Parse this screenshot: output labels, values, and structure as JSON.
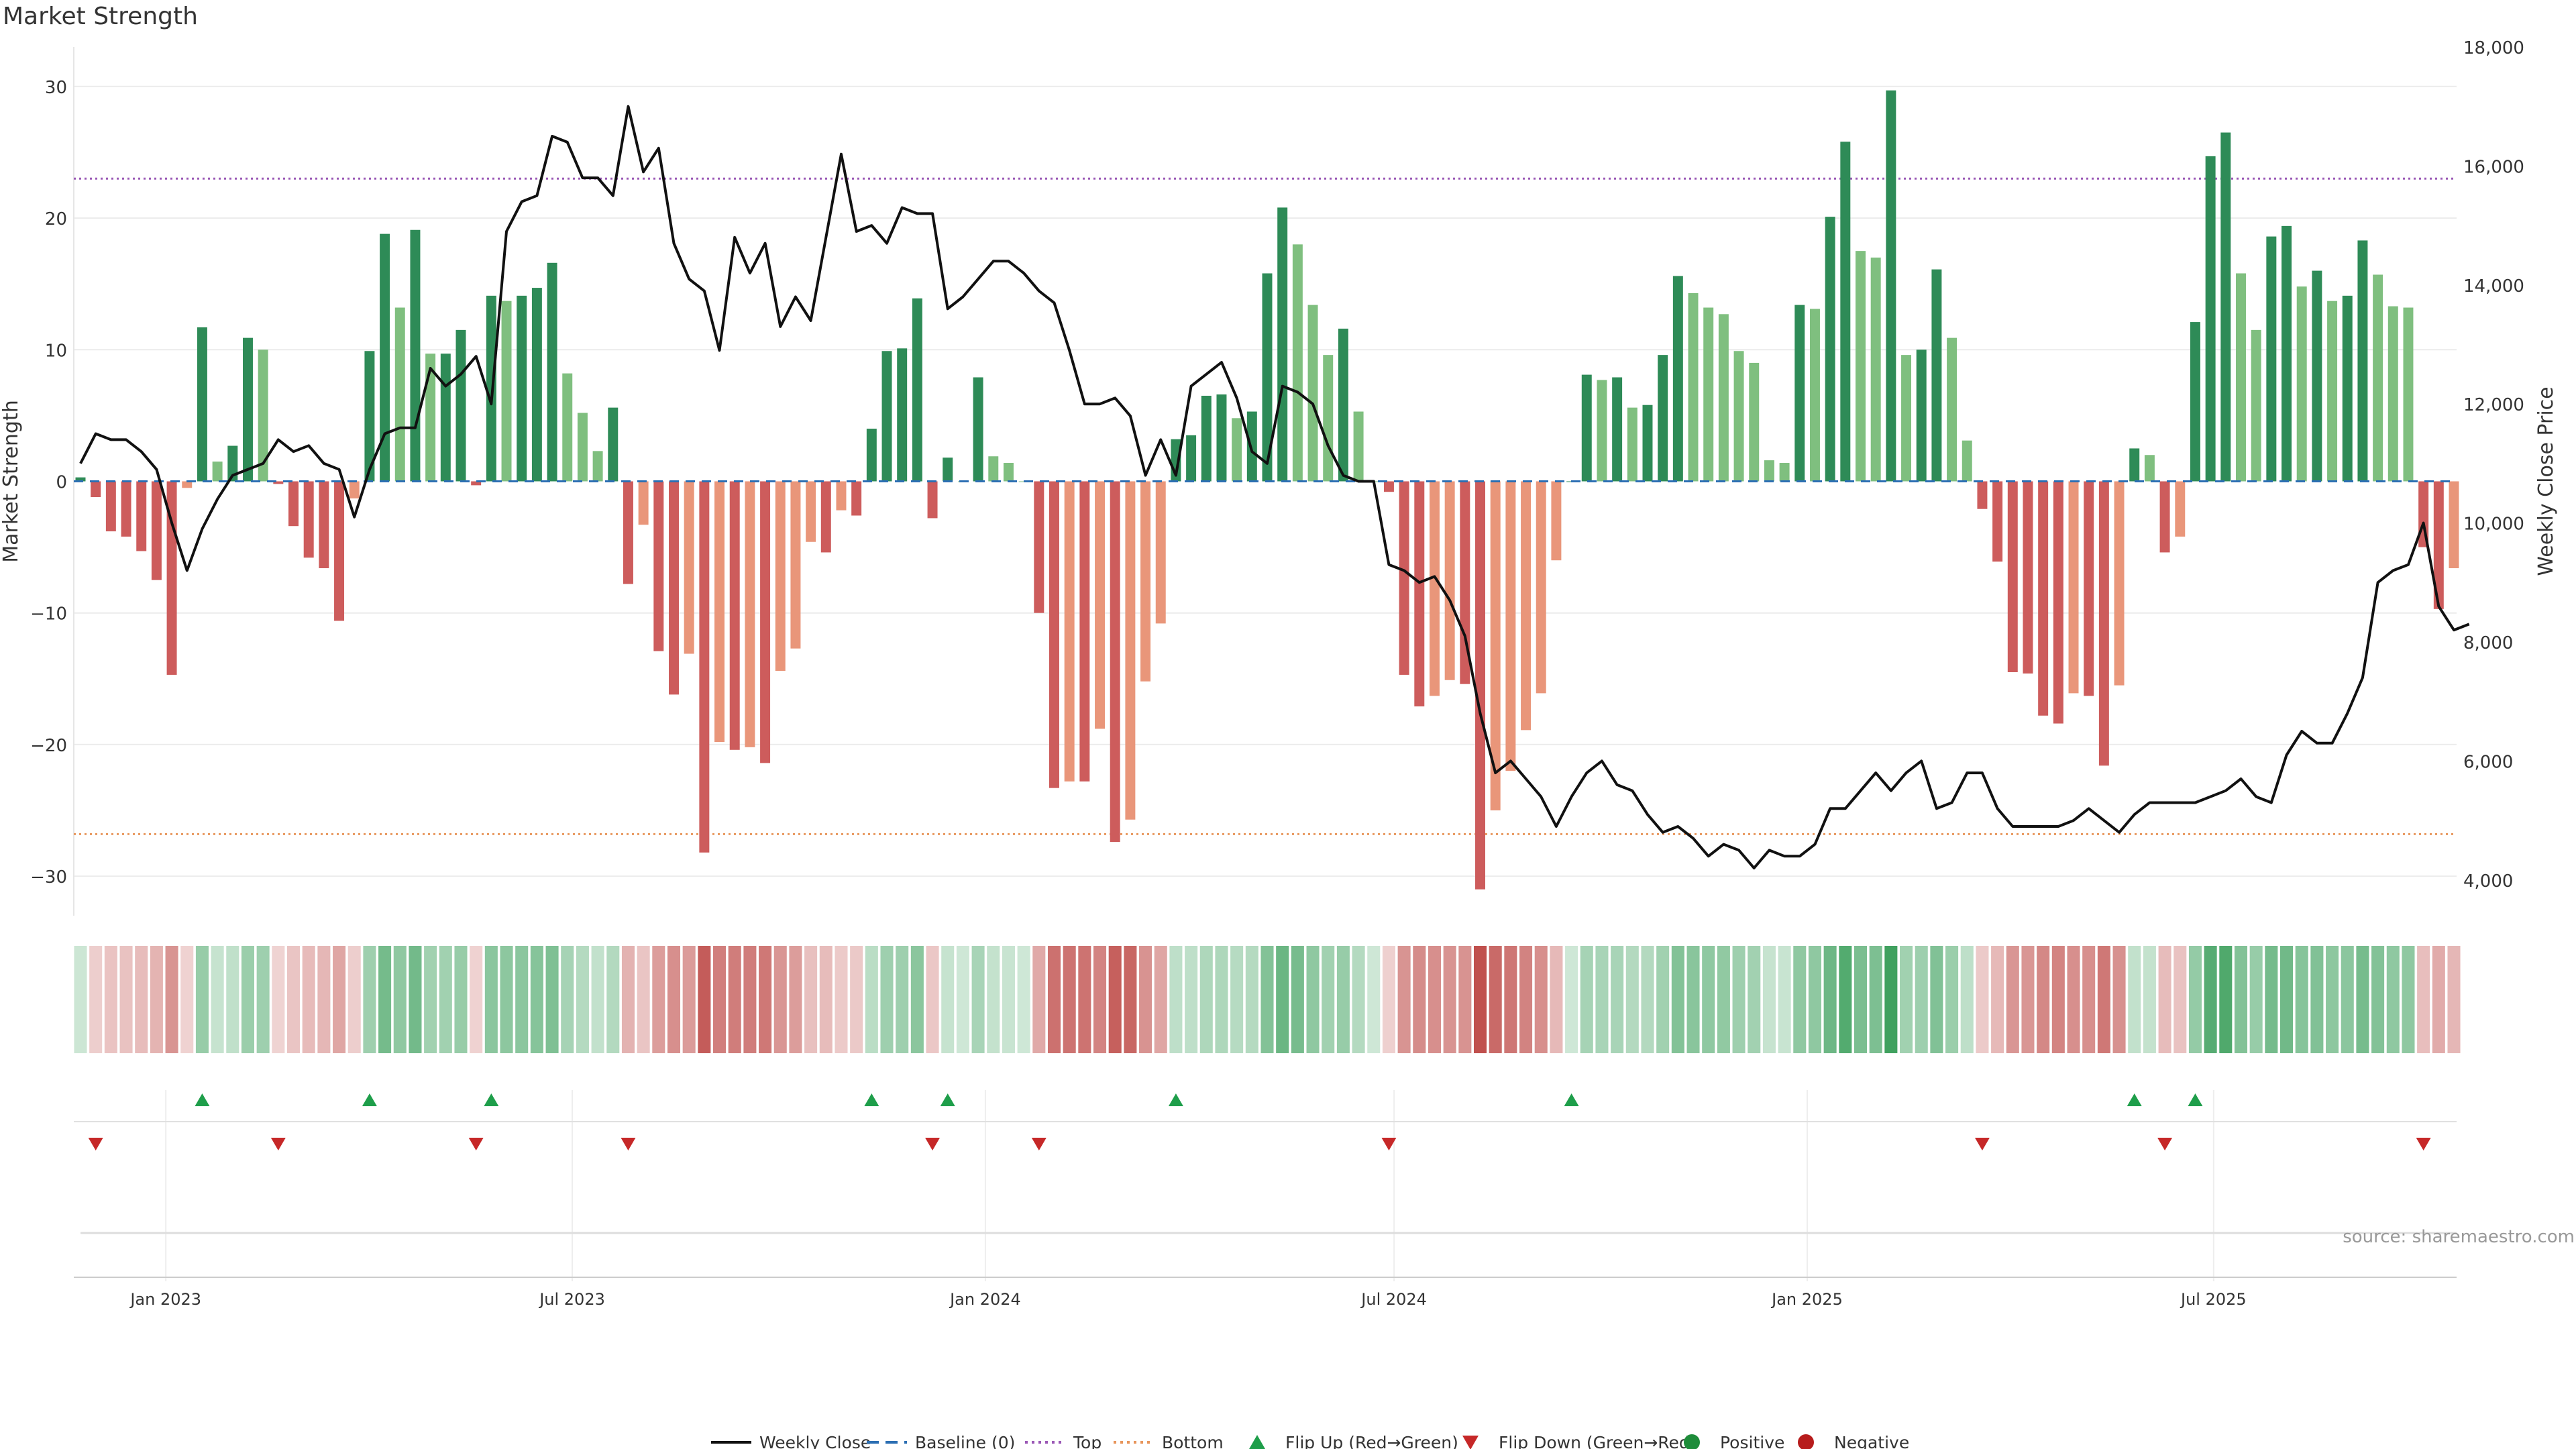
{
  "chart_data": {
    "type": "bar",
    "title": "Market Strength",
    "ylabel_left": "Market Strength",
    "ylabel_right": "Weekly Close Price",
    "ylim_left": [
      -33,
      33
    ],
    "ylim_right": [
      3400,
      18000
    ],
    "yticks_left": [
      30,
      20,
      10,
      0,
      -10,
      -20,
      -30
    ],
    "yticks_left_labels": [
      "30",
      "20",
      "10",
      "0",
      "−10",
      "−20",
      "−30"
    ],
    "yticks_right": [
      18000,
      16000,
      14000,
      12000,
      10000,
      8000,
      6000,
      4000
    ],
    "yticks_right_labels": [
      "18,000",
      "16,000",
      "14,000",
      "12,000",
      "10,000",
      "8,000",
      "6,000",
      "4,000"
    ],
    "top_line": 23,
    "bottom_line": -26.8,
    "x_start": "2022-11-24",
    "x_end": "2025-10-16",
    "x_ticks": [
      {
        "label": "Jan 2023",
        "date": "2023-01-01"
      },
      {
        "label": "Jul 2023",
        "date": "2023-07-01"
      },
      {
        "label": "Jan 2024",
        "date": "2024-01-01"
      },
      {
        "label": "Jul 2024",
        "date": "2024-07-01"
      },
      {
        "label": "Jan 2025",
        "date": "2025-01-01"
      },
      {
        "label": "Jul 2025",
        "date": "2025-07-01"
      }
    ],
    "strength": [
      0.3,
      -1.2,
      -3.8,
      -4.2,
      -5.3,
      -7.5,
      -14.7,
      -0.5,
      11.7,
      1.5,
      2.7,
      10.9,
      10,
      -0.2,
      -3.4,
      -5.8,
      -6.6,
      -10.6,
      -1.3,
      9.9,
      18.8,
      13.2,
      19.1,
      9.7,
      9.7,
      11.5,
      -0.3,
      14.1,
      13.7,
      14.1,
      14.7,
      16.6,
      8.2,
      5.2,
      2.3,
      5.6,
      -7.8,
      -3.3,
      -12.9,
      -16.2,
      -13.1,
      -28.2,
      -19.8,
      -20.4,
      -20.2,
      -21.4,
      -14.4,
      -12.7,
      -4.6,
      -5.4,
      -2.2,
      -2.6,
      4,
      9.9,
      10.1,
      13.9,
      -2.8,
      1.8,
      0,
      7.9,
      1.9,
      1.4,
      0,
      -10,
      -23.3,
      -22.8,
      -22.8,
      -18.8,
      -27.4,
      -25.7,
      -15.2,
      -10.8,
      3.2,
      3.5,
      6.5,
      6.6,
      4.8,
      5.3,
      15.8,
      20.8,
      18,
      13.4,
      9.6,
      11.6,
      5.3,
      0,
      -0.8,
      -14.7,
      -17.1,
      -16.3,
      -15.1,
      -15.4,
      -31,
      -25,
      -22,
      -18.9,
      -16.1,
      -6,
      0,
      8.1,
      7.7,
      7.9,
      5.6,
      5.8,
      9.6,
      15.6,
      14.3,
      13.2,
      12.7,
      9.9,
      9,
      1.6,
      1.4,
      13.4,
      13.1,
      20.1,
      25.8,
      17.5,
      17,
      29.7,
      9.6,
      10,
      16.1,
      10.9,
      3.1,
      -2.1,
      -6.1,
      -14.5,
      -14.6,
      -17.8,
      -18.4,
      -16.1,
      -16.3,
      -21.6,
      -15.5,
      2.5,
      2,
      -5.4,
      -4.2,
      12.1,
      24.7,
      26.5,
      15.8,
      11.5,
      18.6,
      19.4,
      14.8,
      16,
      13.7,
      14.1,
      18.3,
      15.7,
      13.3,
      13.2,
      -5,
      -9.7,
      -6.6
    ],
    "weekly_close": [
      11000,
      11500,
      11400,
      11400,
      11200,
      10900,
      10000,
      9200,
      9900,
      10400,
      10800,
      10900,
      11000,
      11400,
      11200,
      11300,
      11000,
      10900,
      10100,
      10900,
      11500,
      11600,
      11600,
      12600,
      12300,
      12500,
      12800,
      12000,
      14900,
      15400,
      15500,
      16500,
      16400,
      15800,
      15800,
      15500,
      17000,
      15900,
      16300,
      14700,
      14100,
      13900,
      12900,
      14800,
      14200,
      14700,
      13300,
      13800,
      13400,
      14800,
      16200,
      14900,
      15000,
      14700,
      15300,
      15200,
      15200,
      13600,
      13800,
      14100,
      14400,
      14400,
      14200,
      13900,
      13700,
      12900,
      12000,
      12000,
      12100,
      11800,
      10800,
      11400,
      10800,
      12300,
      12500,
      12700,
      12100,
      11200,
      11000,
      12300,
      12200,
      12000,
      11300,
      10800,
      10700,
      10700,
      9300,
      9200,
      9000,
      9100,
      8700,
      8100,
      6800,
      5800,
      6000,
      5700,
      5400,
      4900,
      5400,
      5800,
      6000,
      5600,
      5500,
      5100,
      4800,
      4900,
      4700,
      4400,
      4600,
      4500,
      4200,
      4500,
      4400,
      4400,
      4600,
      5200,
      5200,
      5500,
      5800,
      5500,
      5800,
      6000,
      5200,
      5300,
      5800,
      5800,
      5200,
      4900,
      4900,
      4900,
      4900,
      5000,
      5200,
      5000,
      4800,
      5100,
      5300,
      5300,
      5300,
      5300,
      5400,
      5500,
      5700,
      5400,
      5300,
      6100,
      6500,
      6300,
      6300,
      6800,
      7400,
      9000,
      9200,
      9300,
      10000,
      8600,
      8200,
      8300
    ]
  },
  "legend": [
    {
      "label": "Weekly Close",
      "kind": "line-solid",
      "color": "#111111"
    },
    {
      "label": "Baseline (0)",
      "kind": "line-dash",
      "color": "#2c6fb3"
    },
    {
      "label": "Top",
      "kind": "line-dot",
      "color": "#9b59b6"
    },
    {
      "label": "Bottom",
      "kind": "line-dot",
      "color": "#e8965c"
    },
    {
      "label": "Flip Up (Red→Green)",
      "kind": "tri-up",
      "color": "#1e9e4a"
    },
    {
      "label": "Flip Down (Green→Red)",
      "kind": "tri-down",
      "color": "#c62828"
    },
    {
      "label": "Positive",
      "kind": "dot",
      "color": "#1e8c3a"
    },
    {
      "label": "Negative",
      "kind": "dot",
      "color": "#b71c1c"
    }
  ],
  "source": "source: sharemaestro.com",
  "colors": {
    "pos_dark": "#2e8b57",
    "pos_light": "#7fbf7f",
    "neg_dark": "#cd5c5c",
    "neg_light": "#e9967a",
    "price_line": "#111111",
    "baseline": "#2c6fb3",
    "top": "#9b59b6",
    "bottom": "#e8965c",
    "flip_up": "#1e9e4a",
    "flip_down": "#c62828"
  }
}
